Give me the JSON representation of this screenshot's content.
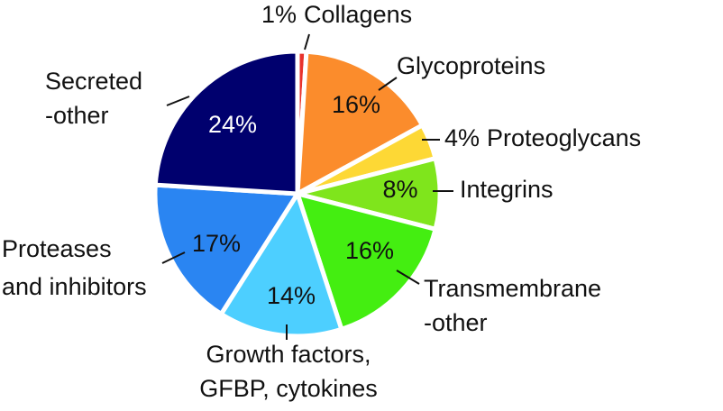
{
  "chart_data": {
    "type": "pie",
    "categories": [
      "Collagens",
      "Glycoproteins",
      "Proteoglycans",
      "Integrins",
      "Transmembrane\n-other",
      "Growth factors,\nGFBP, cytokines",
      "Proteases\nand inhibitors",
      "Secreted\n-other"
    ],
    "values": [
      1,
      16,
      4,
      8,
      16,
      14,
      17,
      24
    ],
    "value_labels": [
      "1%",
      "16%",
      "4%",
      "8%",
      "16%",
      "14%",
      "17%",
      "24%"
    ],
    "colors": [
      "#e8322c",
      "#fb8c2c",
      "#fdd835",
      "#7fe51c",
      "#44ee11",
      "#4dcfff",
      "#2a85f2",
      "#00006e"
    ]
  }
}
